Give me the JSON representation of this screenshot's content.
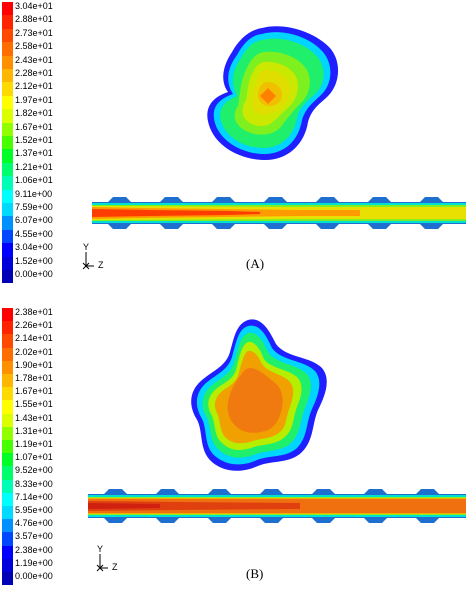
{
  "panels": [
    {
      "id": "A",
      "caption": "(A)",
      "legend": {
        "labels": [
          "3.04e+01",
          "2.88e+01",
          "2.73e+01",
          "2.58e+01",
          "2.43e+01",
          "2.28e+01",
          "2.12e+01",
          "1.97e+01",
          "1.82e+01",
          "1.67e+01",
          "1.52e+01",
          "1.37e+01",
          "1.21e+01",
          "1.06e+01",
          "9.11e+00",
          "7.59e+00",
          "6.07e+00",
          "4.55e+00",
          "3.04e+00",
          "1.52e+00",
          "0.00e+00"
        ]
      },
      "axis": {
        "vertical": "Y",
        "horizontal": "Z"
      }
    },
    {
      "id": "B",
      "caption": "(B)",
      "legend": {
        "labels": [
          "2.38e+01",
          "2.26e+01",
          "2.14e+01",
          "2.02e+01",
          "1.90e+01",
          "1.78e+01",
          "1.67e+01",
          "1.55e+01",
          "1.43e+01",
          "1.31e+01",
          "1.19e+01",
          "1.07e+01",
          "9.52e+00",
          "8.33e+00",
          "7.14e+00",
          "5.95e+00",
          "4.76e+00",
          "3.57e+00",
          "2.38e+00",
          "1.19e+00",
          "0.00e+00"
        ]
      },
      "axis": {
        "vertical": "Y",
        "horizontal": "Z"
      }
    }
  ],
  "colormap": [
    "#ff0000",
    "#ff2400",
    "#ff4800",
    "#ff6d00",
    "#ff9100",
    "#ffb600",
    "#ffda00",
    "#ffff00",
    "#daff00",
    "#91ff00",
    "#48ff00",
    "#00ff24",
    "#00ff6d",
    "#00ffb6",
    "#00ffff",
    "#00daff",
    "#0091ff",
    "#0048ff",
    "#0000ff",
    "#0000da",
    "#0000b6"
  ]
}
